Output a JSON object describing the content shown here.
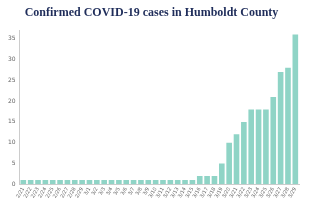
{
  "chart_data": {
    "type": "bar",
    "title": "Confirmed COVID-19 cases in Humboldt County",
    "categories": [
      "2/21",
      "2/22",
      "2/23",
      "2/24",
      "2/25",
      "2/26",
      "2/27",
      "2/28",
      "2/29",
      "3/1",
      "3/2",
      "3/3",
      "3/4",
      "3/5",
      "3/6",
      "3/7",
      "3/8",
      "3/9",
      "3/10",
      "3/11",
      "3/12",
      "3/13",
      "3/14",
      "3/15",
      "3/16",
      "3/17",
      "3/18",
      "3/19",
      "3/20",
      "3/21",
      "3/22",
      "3/23",
      "3/24",
      "3/25",
      "3/26",
      "3/27",
      "3/28",
      "3/29"
    ],
    "values": [
      1,
      1,
      1,
      1,
      1,
      1,
      1,
      1,
      1,
      1,
      1,
      1,
      1,
      1,
      1,
      1,
      1,
      1,
      1,
      1,
      1,
      1,
      1,
      1,
      2,
      2,
      2,
      5,
      10,
      12,
      15,
      18,
      18,
      18,
      21,
      27,
      28,
      36
    ],
    "color": "#8fd4c6",
    "ylim": [
      0,
      37
    ],
    "yticks": [
      0,
      5,
      10,
      15,
      20,
      25,
      30,
      35
    ],
    "grid": false
  }
}
